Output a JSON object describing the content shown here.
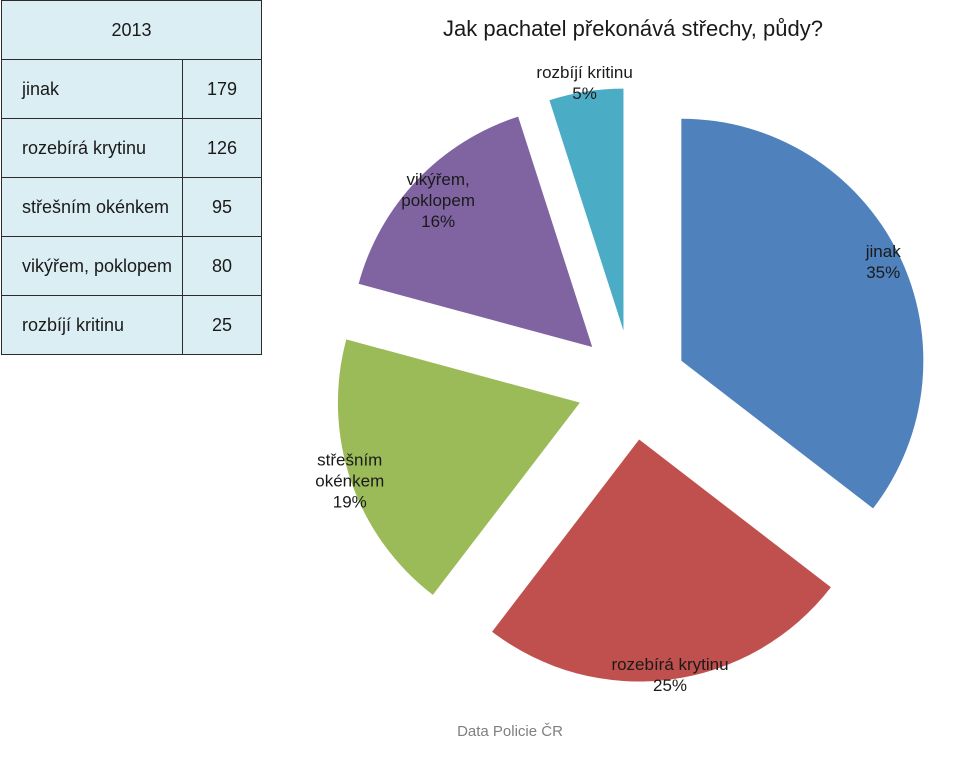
{
  "table": {
    "year": "2013",
    "rows": [
      {
        "label": "jinak",
        "value": "179"
      },
      {
        "label": "rozebírá krytinu",
        "value": "126"
      },
      {
        "label": "střešním okénkem",
        "value": "95"
      },
      {
        "label": "vikýřem, poklopem",
        "value": "80"
      },
      {
        "label": "rozbíjí kritinu",
        "value": "25"
      }
    ]
  },
  "chart_data": {
    "type": "pie",
    "title": "Jak pachatel překonává střechy, půdy?",
    "exploded": true,
    "slices": [
      {
        "label": "jinak",
        "value": 179,
        "percent": "35%",
        "color": "#4f81bd"
      },
      {
        "label": "rozebírá krytinu",
        "value": 126,
        "percent": "25%",
        "color": "#c0504d"
      },
      {
        "label": "střešním okénkem",
        "value": 95,
        "percent": "19%",
        "color": "#9bbb59"
      },
      {
        "label": "vikýřem, poklopem",
        "value": 80,
        "percent": "16%",
        "color": "#8064a2"
      },
      {
        "label": "rozbíjí kritinu",
        "value": 25,
        "percent": "5%",
        "color": "#4bacc6"
      }
    ]
  },
  "source_note": "Data Policie ČR"
}
